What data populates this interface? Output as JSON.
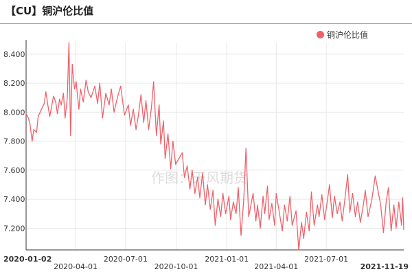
{
  "header": {
    "title": "【CU】铜沪伦比值"
  },
  "watermark": "作图：天风期货",
  "chart_data": {
    "type": "line",
    "title": "【CU】铜沪伦比值",
    "xlabel": "",
    "ylabel": "",
    "ylim": [
      7.05,
      8.48
    ],
    "yticks": [
      7.2,
      7.4,
      7.6,
      7.8,
      8.0,
      8.2,
      8.4
    ],
    "ytick_labels": [
      "7.200",
      "7.400",
      "7.600",
      "7.800",
      "8.000",
      "8.200",
      "8.400"
    ],
    "xlim": [
      "2020-01-02",
      "2021-11-19"
    ],
    "xticks": [
      "2020-01-02",
      "2020-04-01",
      "2020-07-01",
      "2020-10-01",
      "2021-01-01",
      "2021-04-01",
      "2021-07-01",
      "2021-11-19"
    ],
    "grid": true,
    "legend_position": "top-right",
    "series": [
      {
        "name": "铜沪伦比值",
        "color": "#f0606a",
        "points": [
          [
            "2020-01-02",
            7.99
          ],
          [
            "2020-01-06",
            7.96
          ],
          [
            "2020-01-09",
            7.92
          ],
          [
            "2020-01-13",
            7.8
          ],
          [
            "2020-01-16",
            7.88
          ],
          [
            "2020-01-21",
            7.86
          ],
          [
            "2020-01-24",
            7.97
          ],
          [
            "2020-02-04",
            8.06
          ],
          [
            "2020-02-07",
            8.14
          ],
          [
            "2020-02-11",
            8.04
          ],
          [
            "2020-02-14",
            7.97
          ],
          [
            "2020-02-18",
            8.05
          ],
          [
            "2020-02-21",
            8.11
          ],
          [
            "2020-02-25",
            8.07
          ],
          [
            "2020-02-28",
            7.99
          ],
          [
            "2020-03-03",
            8.09
          ],
          [
            "2020-03-06",
            8.05
          ],
          [
            "2020-03-10",
            8.13
          ],
          [
            "2020-03-13",
            7.96
          ],
          [
            "2020-03-17",
            8.1
          ],
          [
            "2020-03-20",
            8.48
          ],
          [
            "2020-03-23",
            7.84
          ],
          [
            "2020-03-26",
            8.33
          ],
          [
            "2020-03-30",
            8.16
          ],
          [
            "2020-04-02",
            8.21
          ],
          [
            "2020-04-07",
            8.02
          ],
          [
            "2020-04-10",
            8.16
          ],
          [
            "2020-04-15",
            8.07
          ],
          [
            "2020-04-20",
            8.22
          ],
          [
            "2020-04-24",
            8.14
          ],
          [
            "2020-04-29",
            8.1
          ],
          [
            "2020-05-06",
            8.18
          ],
          [
            "2020-05-11",
            8.06
          ],
          [
            "2020-05-15",
            8.2
          ],
          [
            "2020-05-20",
            7.96
          ],
          [
            "2020-05-26",
            8.13
          ],
          [
            "2020-06-01",
            8.05
          ],
          [
            "2020-06-05",
            8.16
          ],
          [
            "2020-06-10",
            8.0
          ],
          [
            "2020-06-16",
            8.1
          ],
          [
            "2020-06-22",
            8.18
          ],
          [
            "2020-06-29",
            7.98
          ],
          [
            "2020-07-06",
            8.05
          ],
          [
            "2020-07-10",
            7.91
          ],
          [
            "2020-07-15",
            8.02
          ],
          [
            "2020-07-20",
            7.88
          ],
          [
            "2020-07-24",
            7.97
          ],
          [
            "2020-07-29",
            8.12
          ],
          [
            "2020-08-03",
            7.93
          ],
          [
            "2020-08-07",
            8.08
          ],
          [
            "2020-08-12",
            7.88
          ],
          [
            "2020-08-17",
            8.03
          ],
          [
            "2020-08-21",
            8.21
          ],
          [
            "2020-08-26",
            7.84
          ],
          [
            "2020-08-31",
            8.05
          ],
          [
            "2020-09-03",
            7.78
          ],
          [
            "2020-09-08",
            7.94
          ],
          [
            "2020-09-11",
            7.68
          ],
          [
            "2020-09-16",
            7.85
          ],
          [
            "2020-09-21",
            7.61
          ],
          [
            "2020-09-25",
            7.8
          ],
          [
            "2020-09-30",
            7.64
          ],
          [
            "2020-10-12",
            7.72
          ],
          [
            "2020-10-16",
            7.55
          ],
          [
            "2020-10-21",
            7.63
          ],
          [
            "2020-10-26",
            7.47
          ],
          [
            "2020-10-30",
            7.6
          ],
          [
            "2020-11-04",
            7.44
          ],
          [
            "2020-11-09",
            7.55
          ],
          [
            "2020-11-13",
            7.41
          ],
          [
            "2020-11-18",
            7.58
          ],
          [
            "2020-11-23",
            7.36
          ],
          [
            "2020-11-27",
            7.5
          ],
          [
            "2020-12-02",
            7.33
          ],
          [
            "2020-12-07",
            7.46
          ],
          [
            "2020-12-11",
            7.22
          ],
          [
            "2020-12-16",
            7.4
          ],
          [
            "2020-12-21",
            7.28
          ],
          [
            "2020-12-25",
            7.44
          ],
          [
            "2020-12-30",
            7.3
          ],
          [
            "2021-01-05",
            7.42
          ],
          [
            "2021-01-08",
            7.26
          ],
          [
            "2021-01-13",
            7.38
          ],
          [
            "2021-01-18",
            7.3
          ],
          [
            "2021-01-22",
            7.48
          ],
          [
            "2021-01-27",
            7.15
          ],
          [
            "2021-02-01",
            7.4
          ],
          [
            "2021-02-05",
            7.75
          ],
          [
            "2021-02-10",
            7.28
          ],
          [
            "2021-02-18",
            7.44
          ],
          [
            "2021-02-23",
            7.25
          ],
          [
            "2021-02-26",
            7.36
          ],
          [
            "2021-03-03",
            7.2
          ],
          [
            "2021-03-08",
            7.42
          ],
          [
            "2021-03-11",
            7.3
          ],
          [
            "2021-03-16",
            7.49
          ],
          [
            "2021-03-19",
            7.26
          ],
          [
            "2021-03-24",
            7.37
          ],
          [
            "2021-03-29",
            7.22
          ],
          [
            "2021-04-01",
            7.44
          ],
          [
            "2021-04-07",
            7.3
          ],
          [
            "2021-04-12",
            7.18
          ],
          [
            "2021-04-16",
            7.36
          ],
          [
            "2021-04-21",
            7.25
          ],
          [
            "2021-04-26",
            7.42
          ],
          [
            "2021-04-30",
            7.22
          ],
          [
            "2021-05-07",
            7.32
          ],
          [
            "2021-05-12",
            7.05
          ],
          [
            "2021-05-17",
            7.24
          ],
          [
            "2021-05-21",
            7.13
          ],
          [
            "2021-05-26",
            7.31
          ],
          [
            "2021-05-31",
            7.18
          ],
          [
            "2021-06-04",
            7.45
          ],
          [
            "2021-06-09",
            7.22
          ],
          [
            "2021-06-15",
            7.36
          ],
          [
            "2021-06-18",
            7.28
          ],
          [
            "2021-06-23",
            7.43
          ],
          [
            "2021-06-28",
            7.26
          ],
          [
            "2021-07-02",
            7.36
          ],
          [
            "2021-07-07",
            7.5
          ],
          [
            "2021-07-12",
            7.27
          ],
          [
            "2021-07-16",
            7.42
          ],
          [
            "2021-07-21",
            7.3
          ],
          [
            "2021-07-26",
            7.38
          ],
          [
            "2021-07-30",
            7.25
          ],
          [
            "2021-08-04",
            7.4
          ],
          [
            "2021-08-09",
            7.57
          ],
          [
            "2021-08-13",
            7.31
          ],
          [
            "2021-08-18",
            7.44
          ],
          [
            "2021-08-23",
            7.28
          ],
          [
            "2021-08-27",
            7.38
          ],
          [
            "2021-09-01",
            7.24
          ],
          [
            "2021-09-06",
            7.35
          ],
          [
            "2021-09-10",
            7.46
          ],
          [
            "2021-09-15",
            7.28
          ],
          [
            "2021-09-22",
            7.4
          ],
          [
            "2021-09-28",
            7.56
          ],
          [
            "2021-10-08",
            7.36
          ],
          [
            "2021-10-13",
            7.17
          ],
          [
            "2021-10-18",
            7.38
          ],
          [
            "2021-10-22",
            7.48
          ],
          [
            "2021-10-27",
            7.18
          ],
          [
            "2021-11-01",
            7.36
          ],
          [
            "2021-11-05",
            7.2
          ],
          [
            "2021-11-10",
            7.38
          ],
          [
            "2021-11-15",
            7.22
          ],
          [
            "2021-11-17",
            7.41
          ],
          [
            "2021-11-19",
            7.19
          ]
        ]
      }
    ]
  }
}
